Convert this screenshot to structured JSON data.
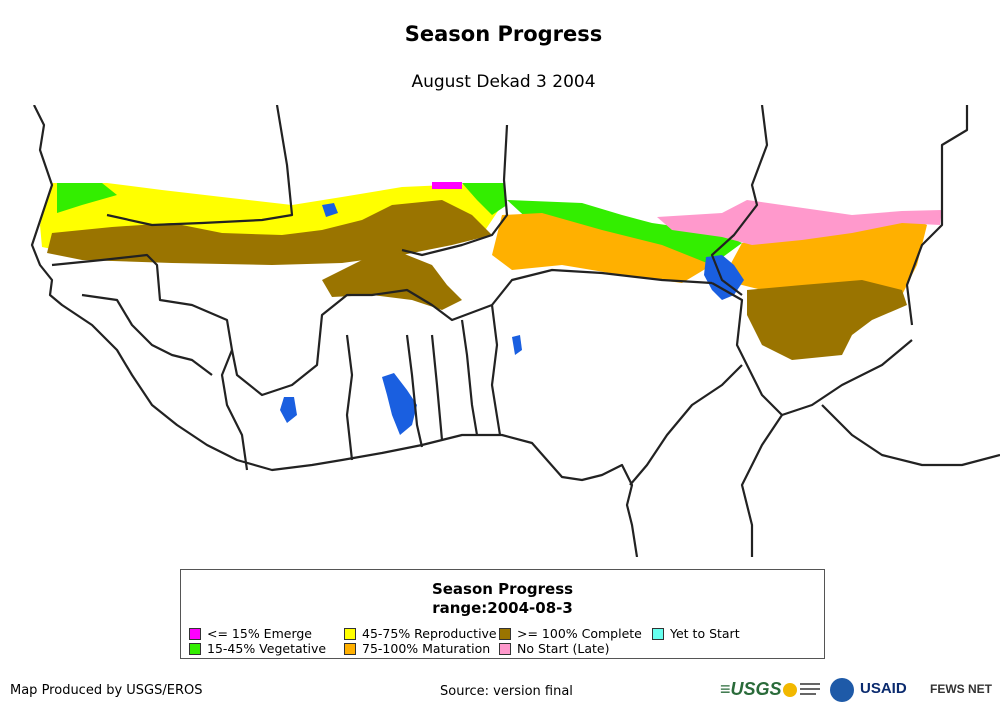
{
  "title": "Season Progress",
  "subtitle": "August Dekad 3 2004",
  "legend": {
    "title": "Season Progress",
    "subtitle": "range:2004-08-3",
    "items": [
      {
        "label": "<= 15% Emerge",
        "color": "#ff00ff"
      },
      {
        "label": "15-45% Vegetative",
        "color": "#33ee00"
      },
      {
        "label": "45-75% Reproductive",
        "color": "#ffff00"
      },
      {
        "label": "75-100% Maturation",
        "color": "#ffb000"
      },
      {
        "label": ">= 100% Complete",
        "color": "#9a7400"
      },
      {
        "label": "No Start (Late)",
        "color": "#ff99cc"
      },
      {
        "label": "Yet to Start",
        "color": "#66ffee"
      }
    ]
  },
  "colors": {
    "water": "#1a5fe0",
    "border": "#222222"
  },
  "footer": {
    "producer": "Map Produced by USGS/EROS",
    "source": "Source: version final"
  },
  "logos": {
    "usgs": "≡USGS",
    "usaid": "USAID",
    "fews": "FEWS NET"
  }
}
